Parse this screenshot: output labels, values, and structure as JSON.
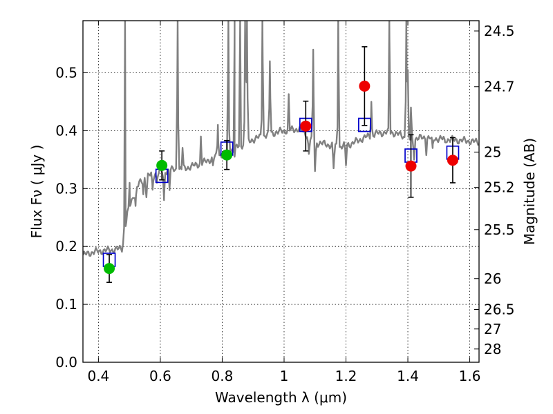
{
  "chart_data": {
    "type": "scatter",
    "xlabel": "Wavelength  λ (μm)",
    "ylabel": "Flux  Fν  ( μJy )",
    "y2label": "Magnitude (AB)",
    "xlim": [
      0.35,
      1.63
    ],
    "ylim": [
      0.0,
      0.59
    ],
    "x_ticks": [
      0.4,
      0.6,
      0.8,
      1.0,
      1.2,
      1.4,
      1.6
    ],
    "x_tick_labels": [
      "0.4",
      "0.6",
      "0.8",
      "1",
      "1.2",
      "1.4",
      "1.6"
    ],
    "y_ticks": [
      0.0,
      0.1,
      0.2,
      0.3,
      0.4,
      0.5
    ],
    "y_tick_labels": [
      "0.0",
      "0.1",
      "0.2",
      "0.3",
      "0.4",
      "0.5"
    ],
    "y2_ticks": [
      {
        "flux": 0.5722,
        "label": "24.5"
      },
      {
        "flux": 0.4759,
        "label": "24.7"
      },
      {
        "flux": 0.3631,
        "label": "25"
      },
      {
        "flux": 0.302,
        "label": "25.2"
      },
      {
        "flux": 0.2291,
        "label": "25.5"
      },
      {
        "flux": 0.1445,
        "label": "26"
      },
      {
        "flux": 0.0912,
        "label": "26.5"
      },
      {
        "flux": 0.0575,
        "label": "27"
      },
      {
        "flux": 0.0229,
        "label": "28"
      }
    ],
    "grid": true,
    "colors": {
      "model": "#808080",
      "green": "#00bb00",
      "red": "#ee0000",
      "box": "#0000cc",
      "errorbar": "#000000"
    },
    "model_spectrum": {
      "baseline": [
        [
          0.35,
          0.185
        ],
        [
          0.38,
          0.19
        ],
        [
          0.42,
          0.193
        ],
        [
          0.46,
          0.195
        ],
        [
          0.478,
          0.197
        ],
        [
          0.485,
          0.245
        ],
        [
          0.5,
          0.265
        ],
        [
          0.52,
          0.3
        ],
        [
          0.55,
          0.32
        ],
        [
          0.58,
          0.326
        ],
        [
          0.6,
          0.329
        ],
        [
          0.63,
          0.332
        ],
        [
          0.66,
          0.333
        ],
        [
          0.7,
          0.338
        ],
        [
          0.74,
          0.345
        ],
        [
          0.78,
          0.355
        ],
        [
          0.81,
          0.362
        ],
        [
          0.85,
          0.372
        ],
        [
          0.9,
          0.385
        ],
        [
          0.95,
          0.394
        ],
        [
          1.0,
          0.4
        ],
        [
          1.05,
          0.403
        ],
        [
          1.1,
          0.38
        ],
        [
          1.14,
          0.376
        ],
        [
          1.18,
          0.372
        ],
        [
          1.22,
          0.378
        ],
        [
          1.26,
          0.388
        ],
        [
          1.3,
          0.395
        ],
        [
          1.34,
          0.398
        ],
        [
          1.38,
          0.392
        ],
        [
          1.4,
          0.385
        ],
        [
          1.45,
          0.388
        ],
        [
          1.5,
          0.386
        ],
        [
          1.55,
          0.384
        ],
        [
          1.6,
          0.382
        ],
        [
          1.63,
          0.38
        ]
      ],
      "lines": [
        [
          0.486,
          0.59
        ],
        [
          0.502,
          0.27
        ],
        [
          0.5007,
          0.31
        ],
        [
          0.52,
          0.27
        ],
        [
          0.545,
          0.29
        ],
        [
          0.589,
          0.31
        ],
        [
          0.63,
          0.3
        ],
        [
          0.656,
          0.59
        ],
        [
          0.672,
          0.37
        ],
        [
          0.731,
          0.39
        ],
        [
          0.77,
          0.34
        ],
        [
          0.786,
          0.41
        ],
        [
          0.82,
          0.59
        ],
        [
          0.84,
          0.59
        ],
        [
          0.858,
          0.59
        ],
        [
          0.874,
          0.59
        ],
        [
          0.88,
          0.59
        ],
        [
          0.93,
          0.59
        ],
        [
          0.954,
          0.52
        ],
        [
          1.015,
          0.46
        ],
        [
          1.094,
          0.54
        ],
        [
          1.175,
          0.59
        ],
        [
          1.282,
          0.45
        ],
        [
          1.34,
          0.59
        ],
        [
          1.395,
          0.59
        ],
        [
          1.4,
          0.5
        ],
        [
          1.41,
          0.44
        ],
        [
          1.46,
          0.36
        ],
        [
          1.52,
          0.38
        ]
      ],
      "dips": [
        [
          0.488,
          0.235
        ],
        [
          0.555,
          0.285
        ],
        [
          0.575,
          0.298
        ],
        [
          0.612,
          0.28
        ],
        [
          0.84,
          0.355
        ],
        [
          1.08,
          0.36
        ],
        [
          1.1,
          0.33
        ],
        [
          1.16,
          0.335
        ],
        [
          1.2,
          0.34
        ],
        [
          1.42,
          0.35
        ],
        [
          1.48,
          0.37
        ]
      ]
    },
    "series": [
      {
        "name": "green",
        "marker": "circle",
        "points": [
          {
            "x": 0.435,
            "y": 0.162,
            "err": 0.024
          },
          {
            "x": 0.605,
            "y": 0.34,
            "err": 0.025
          },
          {
            "x": 0.815,
            "y": 0.358,
            "err": 0.025
          }
        ]
      },
      {
        "name": "red",
        "marker": "circle",
        "points": [
          {
            "x": 1.07,
            "y": 0.408,
            "err": 0.043
          },
          {
            "x": 1.26,
            "y": 0.477,
            "err": 0.068
          },
          {
            "x": 1.41,
            "y": 0.339,
            "err": 0.054
          },
          {
            "x": 1.545,
            "y": 0.349,
            "err": 0.039
          }
        ]
      },
      {
        "name": "model-boxes",
        "marker": "square",
        "points": [
          {
            "x": 0.435,
            "y": 0.177
          },
          {
            "x": 0.605,
            "y": 0.322
          },
          {
            "x": 0.815,
            "y": 0.369
          },
          {
            "x": 1.07,
            "y": 0.41
          },
          {
            "x": 1.26,
            "y": 0.41
          },
          {
            "x": 1.41,
            "y": 0.357
          },
          {
            "x": 1.545,
            "y": 0.362
          }
        ]
      }
    ]
  }
}
